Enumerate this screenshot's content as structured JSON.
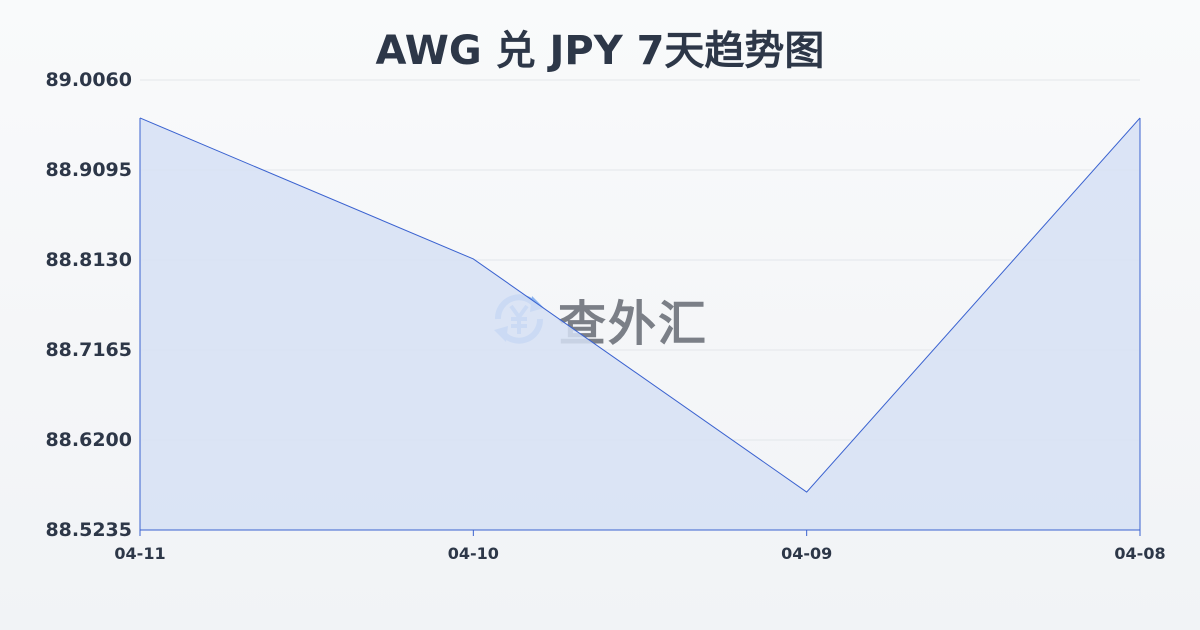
{
  "chart_data": {
    "type": "area",
    "title": "AWG 兑 JPY 7天趋势图",
    "xlabel": "",
    "ylabel": "",
    "categories": [
      "04-11",
      "04-10",
      "04-09",
      "04-08"
    ],
    "values": [
      88.9653,
      88.8141,
      88.5642,
      88.9653
    ],
    "ylim": [
      88.5235,
      89.006
    ],
    "yticks": [
      "89.0060",
      "88.9095",
      "88.8130",
      "88.7165",
      "88.6200",
      "88.5235"
    ],
    "grid": true,
    "colors": {
      "line": "#3a62d0",
      "fill": "#d6e0f5",
      "grid": "#e3e6ea"
    }
  },
  "watermark": {
    "text": "查外汇",
    "icon": "yen-exchange-icon",
    "color": "#8ab4f0"
  }
}
